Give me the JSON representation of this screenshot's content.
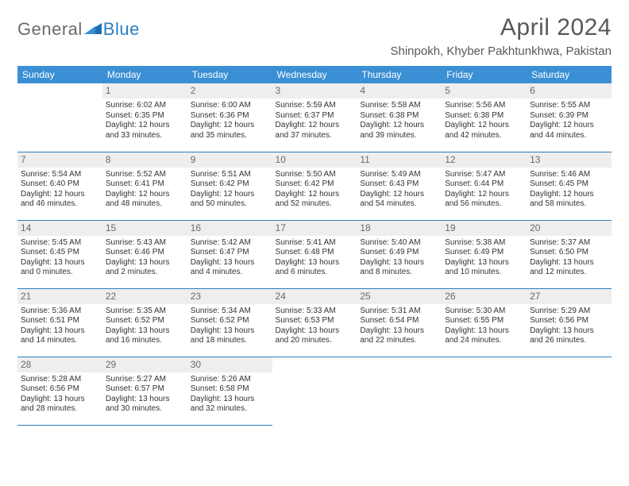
{
  "logo": {
    "general": "General",
    "blue": "Blue"
  },
  "header": {
    "title": "April 2024",
    "location": "Shinpokh, Khyber Pakhtunkhwa, Pakistan"
  },
  "colors": {
    "accent": "#3b8fd4",
    "divider": "#2a7fbf",
    "daybar": "#eeeeee",
    "text": "#333333",
    "muted": "#6a6a6a"
  },
  "weekdays": [
    "Sunday",
    "Monday",
    "Tuesday",
    "Wednesday",
    "Thursday",
    "Friday",
    "Saturday"
  ],
  "weeks": [
    [
      null,
      {
        "d": "1",
        "sr": "Sunrise: 6:02 AM",
        "ss": "Sunset: 6:35 PM",
        "dl1": "Daylight: 12 hours",
        "dl2": "and 33 minutes."
      },
      {
        "d": "2",
        "sr": "Sunrise: 6:00 AM",
        "ss": "Sunset: 6:36 PM",
        "dl1": "Daylight: 12 hours",
        "dl2": "and 35 minutes."
      },
      {
        "d": "3",
        "sr": "Sunrise: 5:59 AM",
        "ss": "Sunset: 6:37 PM",
        "dl1": "Daylight: 12 hours",
        "dl2": "and 37 minutes."
      },
      {
        "d": "4",
        "sr": "Sunrise: 5:58 AM",
        "ss": "Sunset: 6:38 PM",
        "dl1": "Daylight: 12 hours",
        "dl2": "and 39 minutes."
      },
      {
        "d": "5",
        "sr": "Sunrise: 5:56 AM",
        "ss": "Sunset: 6:38 PM",
        "dl1": "Daylight: 12 hours",
        "dl2": "and 42 minutes."
      },
      {
        "d": "6",
        "sr": "Sunrise: 5:55 AM",
        "ss": "Sunset: 6:39 PM",
        "dl1": "Daylight: 12 hours",
        "dl2": "and 44 minutes."
      }
    ],
    [
      {
        "d": "7",
        "sr": "Sunrise: 5:54 AM",
        "ss": "Sunset: 6:40 PM",
        "dl1": "Daylight: 12 hours",
        "dl2": "and 46 minutes."
      },
      {
        "d": "8",
        "sr": "Sunrise: 5:52 AM",
        "ss": "Sunset: 6:41 PM",
        "dl1": "Daylight: 12 hours",
        "dl2": "and 48 minutes."
      },
      {
        "d": "9",
        "sr": "Sunrise: 5:51 AM",
        "ss": "Sunset: 6:42 PM",
        "dl1": "Daylight: 12 hours",
        "dl2": "and 50 minutes."
      },
      {
        "d": "10",
        "sr": "Sunrise: 5:50 AM",
        "ss": "Sunset: 6:42 PM",
        "dl1": "Daylight: 12 hours",
        "dl2": "and 52 minutes."
      },
      {
        "d": "11",
        "sr": "Sunrise: 5:49 AM",
        "ss": "Sunset: 6:43 PM",
        "dl1": "Daylight: 12 hours",
        "dl2": "and 54 minutes."
      },
      {
        "d": "12",
        "sr": "Sunrise: 5:47 AM",
        "ss": "Sunset: 6:44 PM",
        "dl1": "Daylight: 12 hours",
        "dl2": "and 56 minutes."
      },
      {
        "d": "13",
        "sr": "Sunrise: 5:46 AM",
        "ss": "Sunset: 6:45 PM",
        "dl1": "Daylight: 12 hours",
        "dl2": "and 58 minutes."
      }
    ],
    [
      {
        "d": "14",
        "sr": "Sunrise: 5:45 AM",
        "ss": "Sunset: 6:45 PM",
        "dl1": "Daylight: 13 hours",
        "dl2": "and 0 minutes."
      },
      {
        "d": "15",
        "sr": "Sunrise: 5:43 AM",
        "ss": "Sunset: 6:46 PM",
        "dl1": "Daylight: 13 hours",
        "dl2": "and 2 minutes."
      },
      {
        "d": "16",
        "sr": "Sunrise: 5:42 AM",
        "ss": "Sunset: 6:47 PM",
        "dl1": "Daylight: 13 hours",
        "dl2": "and 4 minutes."
      },
      {
        "d": "17",
        "sr": "Sunrise: 5:41 AM",
        "ss": "Sunset: 6:48 PM",
        "dl1": "Daylight: 13 hours",
        "dl2": "and 6 minutes."
      },
      {
        "d": "18",
        "sr": "Sunrise: 5:40 AM",
        "ss": "Sunset: 6:49 PM",
        "dl1": "Daylight: 13 hours",
        "dl2": "and 8 minutes."
      },
      {
        "d": "19",
        "sr": "Sunrise: 5:38 AM",
        "ss": "Sunset: 6:49 PM",
        "dl1": "Daylight: 13 hours",
        "dl2": "and 10 minutes."
      },
      {
        "d": "20",
        "sr": "Sunrise: 5:37 AM",
        "ss": "Sunset: 6:50 PM",
        "dl1": "Daylight: 13 hours",
        "dl2": "and 12 minutes."
      }
    ],
    [
      {
        "d": "21",
        "sr": "Sunrise: 5:36 AM",
        "ss": "Sunset: 6:51 PM",
        "dl1": "Daylight: 13 hours",
        "dl2": "and 14 minutes."
      },
      {
        "d": "22",
        "sr": "Sunrise: 5:35 AM",
        "ss": "Sunset: 6:52 PM",
        "dl1": "Daylight: 13 hours",
        "dl2": "and 16 minutes."
      },
      {
        "d": "23",
        "sr": "Sunrise: 5:34 AM",
        "ss": "Sunset: 6:52 PM",
        "dl1": "Daylight: 13 hours",
        "dl2": "and 18 minutes."
      },
      {
        "d": "24",
        "sr": "Sunrise: 5:33 AM",
        "ss": "Sunset: 6:53 PM",
        "dl1": "Daylight: 13 hours",
        "dl2": "and 20 minutes."
      },
      {
        "d": "25",
        "sr": "Sunrise: 5:31 AM",
        "ss": "Sunset: 6:54 PM",
        "dl1": "Daylight: 13 hours",
        "dl2": "and 22 minutes."
      },
      {
        "d": "26",
        "sr": "Sunrise: 5:30 AM",
        "ss": "Sunset: 6:55 PM",
        "dl1": "Daylight: 13 hours",
        "dl2": "and 24 minutes."
      },
      {
        "d": "27",
        "sr": "Sunrise: 5:29 AM",
        "ss": "Sunset: 6:56 PM",
        "dl1": "Daylight: 13 hours",
        "dl2": "and 26 minutes."
      }
    ],
    [
      {
        "d": "28",
        "sr": "Sunrise: 5:28 AM",
        "ss": "Sunset: 6:56 PM",
        "dl1": "Daylight: 13 hours",
        "dl2": "and 28 minutes."
      },
      {
        "d": "29",
        "sr": "Sunrise: 5:27 AM",
        "ss": "Sunset: 6:57 PM",
        "dl1": "Daylight: 13 hours",
        "dl2": "and 30 minutes."
      },
      {
        "d": "30",
        "sr": "Sunrise: 5:26 AM",
        "ss": "Sunset: 6:58 PM",
        "dl1": "Daylight: 13 hours",
        "dl2": "and 32 minutes."
      },
      null,
      null,
      null,
      null
    ]
  ]
}
